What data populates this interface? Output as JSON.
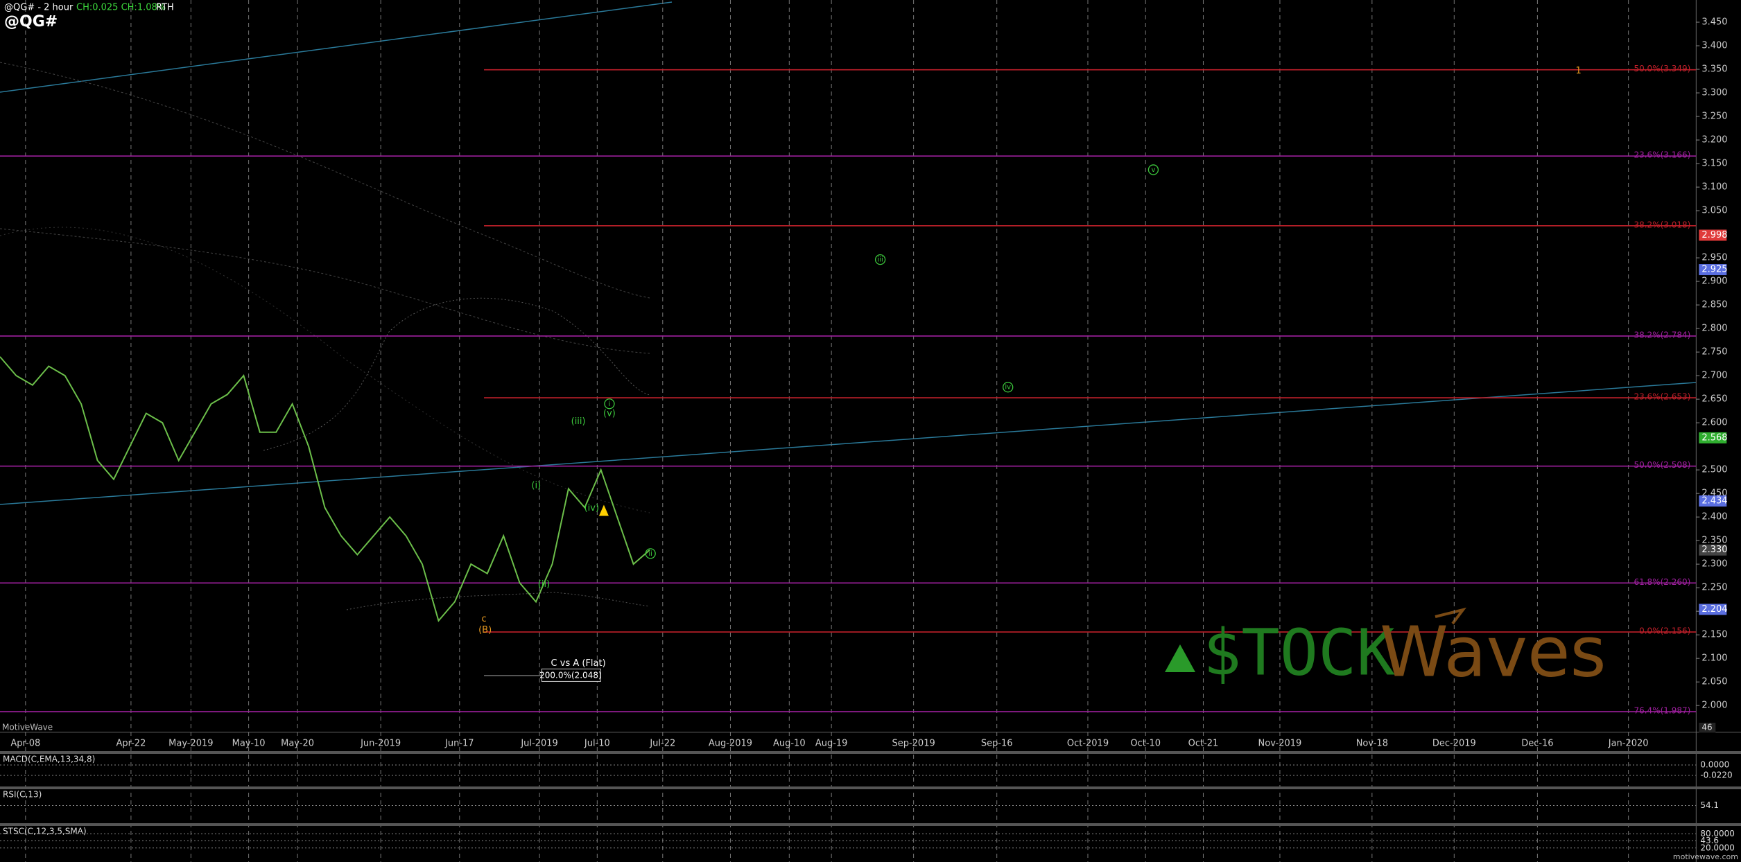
{
  "header": {
    "symbol_period": "@QG# - 2 hour",
    "change": "CH:0.025 CH:1.08%",
    "session": "RTH",
    "symbol": "@QG#",
    "brand": "MotiveWave"
  },
  "price_axis": {
    "ylim": [
      2.0,
      3.45
    ],
    "ticks": [
      {
        "value": 3.45,
        "label": "3.450"
      },
      {
        "value": 3.4,
        "label": "3.400"
      },
      {
        "value": 3.35,
        "label": "3.350"
      },
      {
        "value": 3.3,
        "label": "3.300"
      },
      {
        "value": 3.25,
        "label": "3.250"
      },
      {
        "value": 3.2,
        "label": "3.200"
      },
      {
        "value": 3.15,
        "label": "3.150"
      },
      {
        "value": 3.1,
        "label": "3.100"
      },
      {
        "value": 3.05,
        "label": "3.050"
      },
      {
        "value": 2.95,
        "label": "2.950"
      },
      {
        "value": 2.9,
        "label": "2.900"
      },
      {
        "value": 2.85,
        "label": "2.850"
      },
      {
        "value": 2.8,
        "label": "2.800"
      },
      {
        "value": 2.75,
        "label": "2.750"
      },
      {
        "value": 2.7,
        "label": "2.700"
      },
      {
        "value": 2.65,
        "label": "2.650"
      },
      {
        "value": 2.6,
        "label": "2.600"
      },
      {
        "value": 2.5,
        "label": "2.500"
      },
      {
        "value": 2.45,
        "label": "2.450"
      },
      {
        "value": 2.4,
        "label": "2.400"
      },
      {
        "value": 2.35,
        "label": "2.350"
      },
      {
        "value": 2.3,
        "label": "2.300"
      },
      {
        "value": 2.25,
        "label": "2.250"
      },
      {
        "value": 2.2,
        "label": "2.200"
      },
      {
        "value": 2.15,
        "label": "2.150"
      },
      {
        "value": 2.1,
        "label": "2.100"
      },
      {
        "value": 2.05,
        "label": "2.050"
      },
      {
        "value": 2.0,
        "label": "2.000"
      }
    ],
    "badges": [
      {
        "value": 2.998,
        "label": "2.998",
        "color": "#e03a3a"
      },
      {
        "value": 2.925,
        "label": "2.925",
        "color": "#5a6ee0"
      },
      {
        "value": 2.568,
        "label": "2.568",
        "color": "#2fae2f"
      },
      {
        "value": 2.434,
        "label": "2.434",
        "color": "#5a6ee0"
      },
      {
        "value": 2.33,
        "label": "2.330",
        "color": "#444444"
      },
      {
        "value": 2.204,
        "label": "2.204",
        "color": "#5a6ee0"
      }
    ],
    "volume_label": "46"
  },
  "time_axis": [
    "Apr-08",
    "Apr-22",
    "May-2019",
    "May-10",
    "May-20",
    "Jun-2019",
    "Jun-17",
    "Jul-2019",
    "Jul-10",
    "Jul-22",
    "Aug-2019",
    "Aug-10",
    "Aug-19",
    "Sep-2019",
    "Sep-16",
    "Oct-2019",
    "Oct-10",
    "Oct-21",
    "Nov-2019",
    "Nov-18",
    "Dec-2019",
    "Dec-16",
    "Jan-2020"
  ],
  "price": {
    "color": "#6cbf4a",
    "values": [
      2.74,
      2.7,
      2.68,
      2.72,
      2.7,
      2.64,
      2.52,
      2.48,
      2.55,
      2.62,
      2.6,
      2.52,
      2.58,
      2.64,
      2.66,
      2.7,
      2.58,
      2.58,
      2.64,
      2.55,
      2.42,
      2.36,
      2.32,
      2.36,
      2.4,
      2.36,
      2.3,
      2.18,
      2.22,
      2.3,
      2.28,
      2.36,
      2.26,
      2.22,
      2.3,
      2.46,
      2.42,
      2.5,
      2.4,
      2.3,
      2.33
    ]
  },
  "fib_levels": [
    {
      "value": 3.349,
      "label": "50.0%(3.349)",
      "color": "#c0202a",
      "from_start": false
    },
    {
      "value": 3.018,
      "label": "38.2%(3.018)",
      "color": "#c0202a",
      "from_start": false
    },
    {
      "value": 2.653,
      "label": "23.6%(2.653)",
      "color": "#c0202a",
      "from_start": false
    },
    {
      "value": 2.156,
      "label": "0.0%(2.156)",
      "color": "#c0202a",
      "from_start": false
    },
    {
      "value": 3.166,
      "label": "23.6%(3.166)",
      "color": "#a020a0",
      "from_start": true
    },
    {
      "value": 2.784,
      "label": "38.2%(2.784)",
      "color": "#a020a0",
      "from_start": true
    },
    {
      "value": 2.508,
      "label": "50.0%(2.508)",
      "color": "#a020a0",
      "from_start": true
    },
    {
      "value": 2.26,
      "label": "61.8%(2.260)",
      "color": "#a020a0",
      "from_start": true
    },
    {
      "value": 1.987,
      "label": "76.4%(1.987)",
      "color": "#a020a0",
      "from_start": true
    }
  ],
  "wave_labels": [
    {
      "text": "c",
      "color": "#e89a20",
      "circled": false
    },
    {
      "text": "(B)",
      "color": "#e89a20",
      "circled": false
    },
    {
      "text": "(i)",
      "color": "#3cc83c",
      "circled": false
    },
    {
      "text": "(ii)",
      "color": "#3cc83c",
      "circled": false
    },
    {
      "text": "(iii)",
      "color": "#3cc83c",
      "circled": false
    },
    {
      "text": "(iv)",
      "color": "#3cc83c",
      "circled": false
    },
    {
      "text": "(v)",
      "color": "#3cc83c",
      "circled": false
    },
    {
      "text": "i",
      "color": "#3cc83c",
      "circled": true
    },
    {
      "text": "ii",
      "color": "#3cc83c",
      "circled": true
    },
    {
      "text": "iii",
      "color": "#3cc83c",
      "circled": true
    },
    {
      "text": "iv",
      "color": "#3cc83c",
      "circled": true
    },
    {
      "text": "v",
      "color": "#3cc83c",
      "circled": true
    },
    {
      "text": "1",
      "color": "#e89a20",
      "circled": false
    }
  ],
  "projection": {
    "title": "C vs A (Flat)",
    "label": "200.0%(2.048)"
  },
  "logo": {
    "left": "$TOCK",
    "right": "Waves"
  },
  "indicators": [
    {
      "name": "MACD(C,EMA,13,34,8)",
      "labels": [
        "0.0000",
        "-0.0220"
      ]
    },
    {
      "name": "RSI(C,13)",
      "labels": [
        "54.1"
      ]
    },
    {
      "name": "STSC(C,12,3,5,SMA)",
      "labels": [
        "80.0000",
        "43.6",
        "20.0000"
      ]
    }
  ],
  "footer": "motivewave.com"
}
